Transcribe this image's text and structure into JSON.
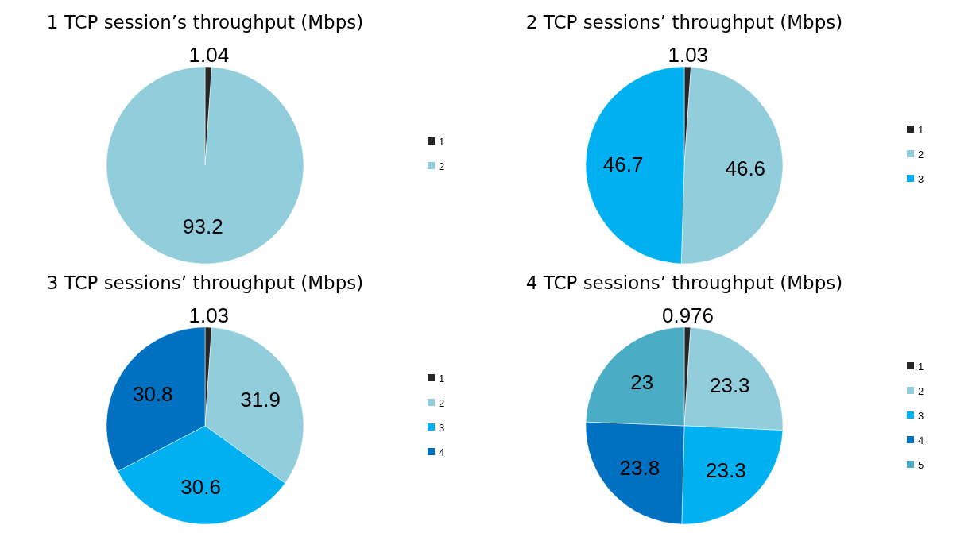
{
  "chart_data": [
    {
      "type": "pie",
      "title": "1 TCP session’s throughput (Mbps)",
      "categories": [
        "1",
        "2"
      ],
      "values": [
        1.04,
        93.2
      ],
      "colors": [
        "#262626",
        "#92cddc"
      ],
      "data_labels": true,
      "legend": "right"
    },
    {
      "type": "pie",
      "title": "2 TCP sessions’ throughput (Mbps)",
      "categories": [
        "1",
        "2",
        "3"
      ],
      "values": [
        1.03,
        46.6,
        46.7
      ],
      "colors": [
        "#262626",
        "#92cddc",
        "#00b0f0"
      ],
      "data_labels": true,
      "legend": "right"
    },
    {
      "type": "pie",
      "title": "3 TCP sessions’ throughput (Mbps)",
      "categories": [
        "1",
        "2",
        "3",
        "4"
      ],
      "values": [
        1.03,
        31.9,
        30.6,
        30.8
      ],
      "colors": [
        "#262626",
        "#92cddc",
        "#00b0f0",
        "#0070c0"
      ],
      "data_labels": true,
      "legend": "right"
    },
    {
      "type": "pie",
      "title": "4 TCP sessions’ throughput (Mbps)",
      "categories": [
        "1",
        "2",
        "3",
        "4",
        "5"
      ],
      "values": [
        0.976,
        23.3,
        23.3,
        23.8,
        23
      ],
      "colors": [
        "#262626",
        "#92cddc",
        "#00b0f0",
        "#0070c0",
        "#4bacc6"
      ],
      "data_labels": true,
      "legend": "right"
    }
  ]
}
